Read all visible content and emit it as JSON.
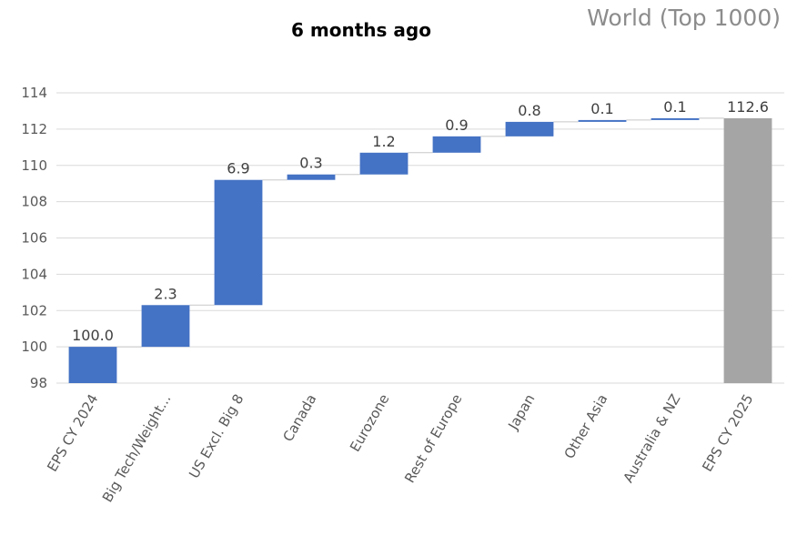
{
  "chart_data": {
    "type": "bar",
    "subtype": "waterfall",
    "title": "6 months ago",
    "subtitle": "World (Top 1000)",
    "categories": [
      "EPS CY 2024",
      "Big Tech/Weight...",
      "US Excl. Big 8",
      "Canada",
      "Eurozone",
      "Rest of Europe",
      "Japan",
      "Other Asia",
      "Australia & NZ",
      "EPS CY 2025"
    ],
    "values": [
      100.0,
      2.3,
      6.9,
      0.3,
      1.2,
      0.9,
      0.8,
      0.1,
      0.1,
      112.6
    ],
    "value_labels": [
      "100.0",
      "2.3",
      "6.9",
      "0.3",
      "1.2",
      "0.9",
      "0.8",
      "0.1",
      "0.1",
      "112.6"
    ],
    "bar_kind": [
      "total",
      "delta",
      "delta",
      "delta",
      "delta",
      "delta",
      "delta",
      "delta",
      "delta",
      "total"
    ],
    "ylim": [
      98,
      114
    ],
    "yticks": [
      98,
      100,
      102,
      104,
      106,
      108,
      110,
      112,
      114
    ],
    "xlabel": "",
    "ylabel": "",
    "grid": true,
    "legend": "none",
    "colors": {
      "delta": "#4472c4",
      "total_start": "#4472c4",
      "total_end": "#a5a5a5"
    }
  }
}
